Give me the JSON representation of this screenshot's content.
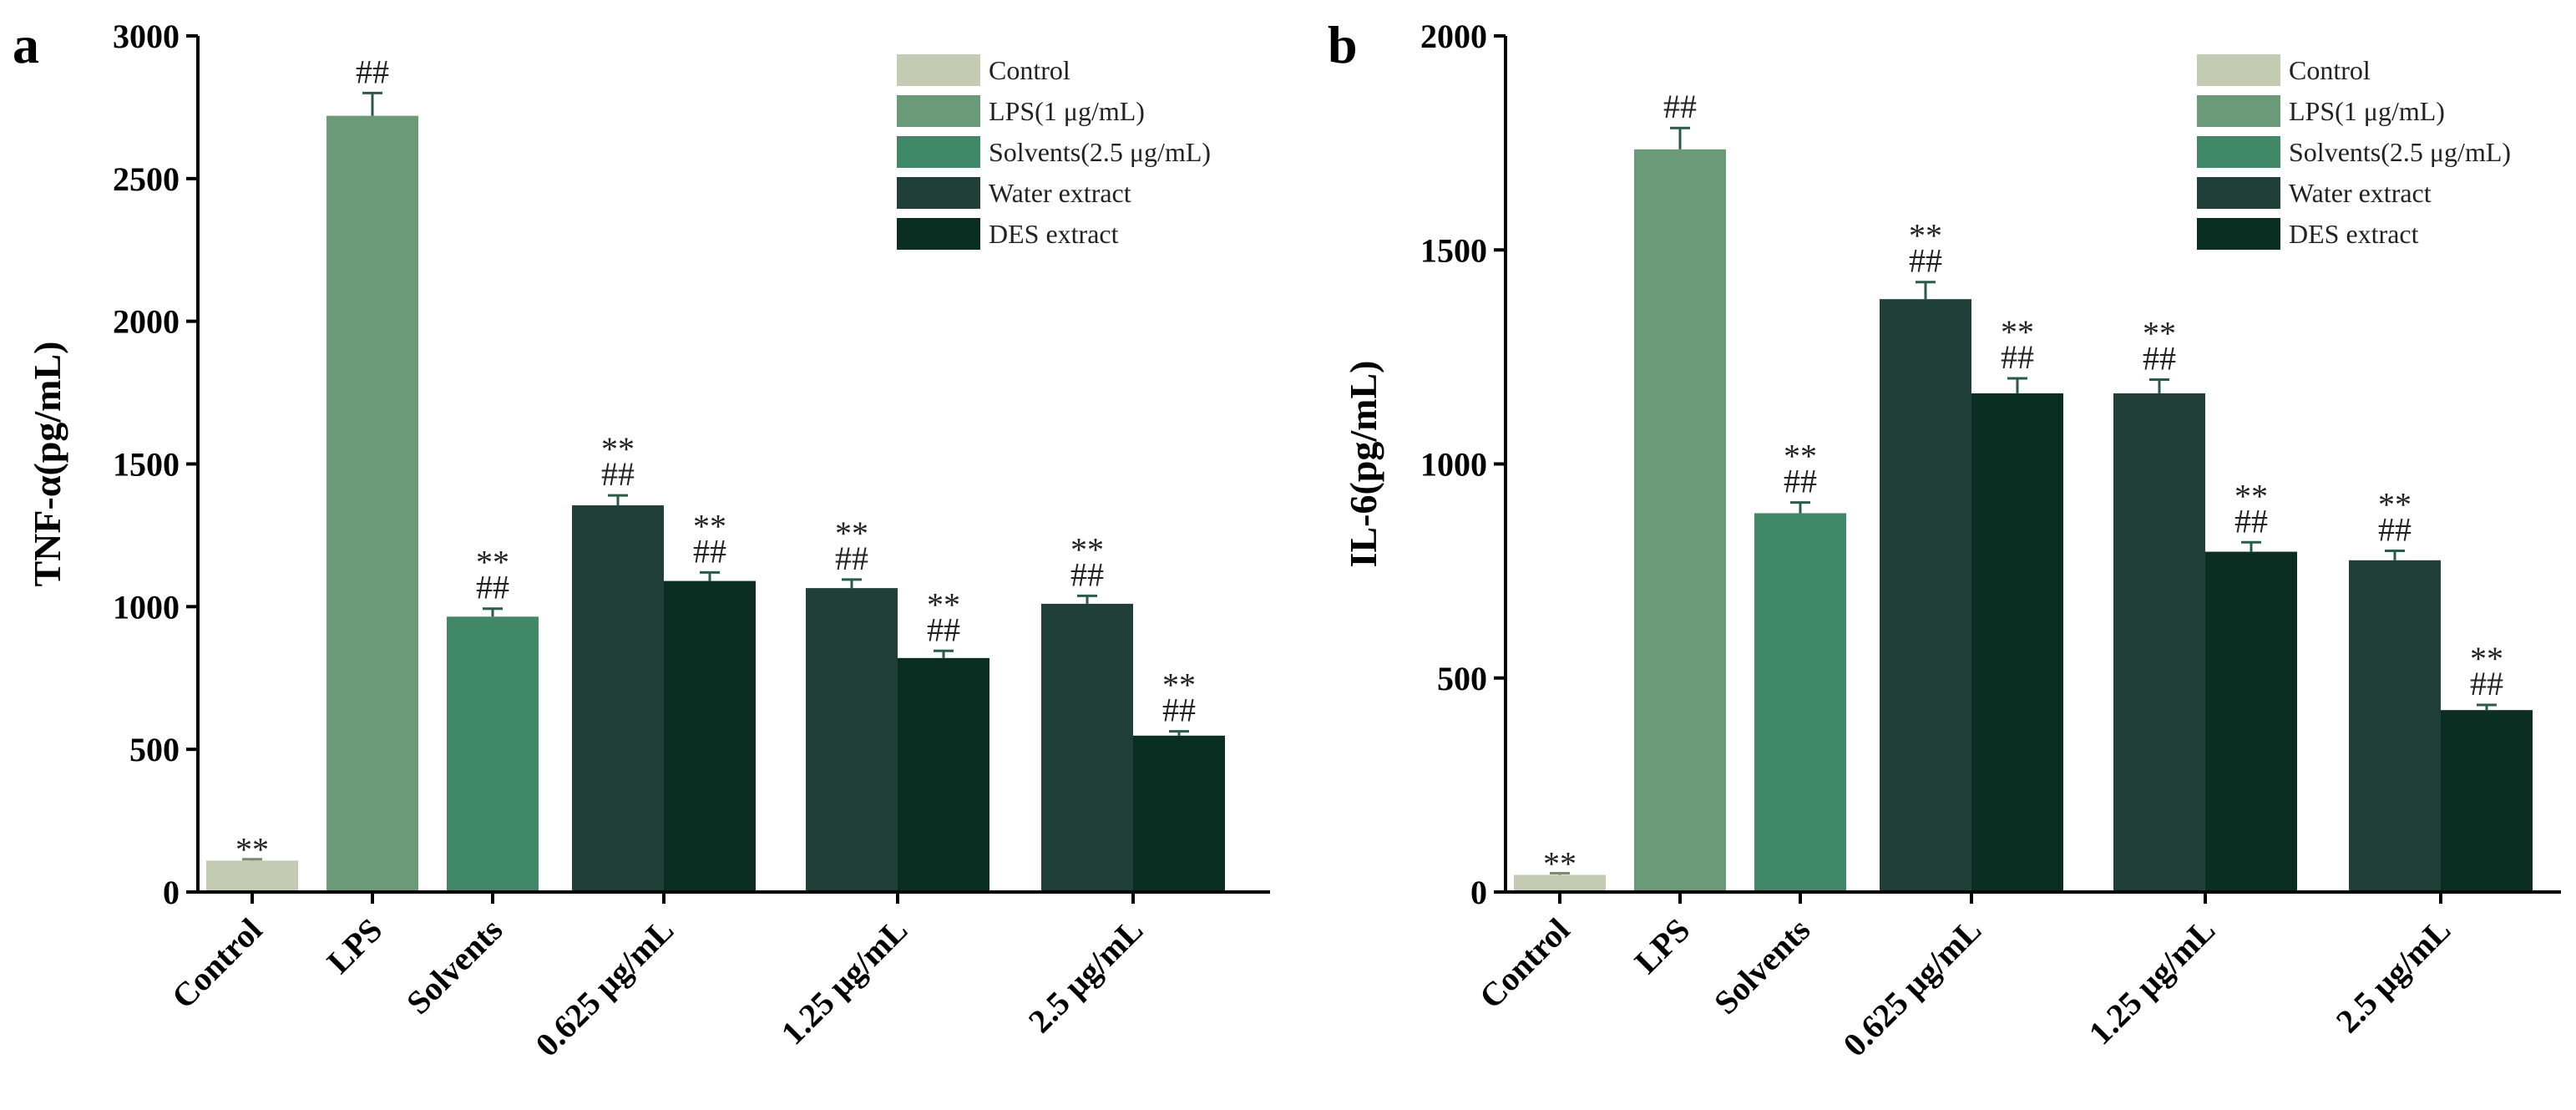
{
  "chart_data": [
    {
      "type": "bar",
      "panel": "a",
      "ylabel": "TNF-α(pg/mL)",
      "ylim": [
        0,
        3000
      ],
      "yticks": [
        0,
        500,
        1000,
        1500,
        2000,
        2500,
        3000
      ],
      "categories": [
        "Control",
        "LPS",
        "Solvents",
        "0.625 μg/mL",
        "1.25 μg/mL",
        "2.5 μg/mL"
      ],
      "bars": [
        {
          "category": "Control",
          "series": "Control",
          "value": 110,
          "error": 5,
          "labels": [
            "**"
          ]
        },
        {
          "category": "LPS",
          "series": "LPS(1 μg/mL)",
          "value": 2720,
          "error": 80,
          "labels": [
            "##"
          ]
        },
        {
          "category": "Solvents",
          "series": "Solvents(2.5 μg/mL)",
          "value": 965,
          "error": 28,
          "labels": [
            "**",
            "##"
          ]
        },
        {
          "category": "0.625 μg/mL",
          "series": "Water extract",
          "value": 1355,
          "error": 35,
          "labels": [
            "**",
            "##"
          ]
        },
        {
          "category": "0.625 μg/mL",
          "series": "DES extract",
          "value": 1090,
          "error": 30,
          "labels": [
            "**",
            "##"
          ]
        },
        {
          "category": "1.25 μg/mL",
          "series": "Water extract",
          "value": 1065,
          "error": 30,
          "labels": [
            "**",
            "##"
          ]
        },
        {
          "category": "1.25 μg/mL",
          "series": "DES extract",
          "value": 820,
          "error": 25,
          "labels": [
            "**",
            "##"
          ]
        },
        {
          "category": "2.5 μg/mL",
          "series": "Water extract",
          "value": 1010,
          "error": 28,
          "labels": [
            "**",
            "##"
          ]
        },
        {
          "category": "2.5 μg/mL",
          "series": "DES extract",
          "value": 548,
          "error": 15,
          "labels": [
            "**",
            "##"
          ]
        }
      ]
    },
    {
      "type": "bar",
      "panel": "b",
      "ylabel": "IL-6(pg/mL)",
      "ylim": [
        0,
        2000
      ],
      "yticks": [
        0,
        500,
        1000,
        1500,
        2000
      ],
      "categories": [
        "Control",
        "LPS",
        "Solvents",
        "0.625 μg/mL",
        "1.25 μg/mL",
        "2.5 μg/mL"
      ],
      "bars": [
        {
          "category": "Control",
          "series": "Control",
          "value": 40,
          "error": 4,
          "labels": [
            "**"
          ]
        },
        {
          "category": "LPS",
          "series": "LPS(1 μg/mL)",
          "value": 1735,
          "error": 50,
          "labels": [
            "##"
          ]
        },
        {
          "category": "Solvents",
          "series": "Solvents(2.5 μg/mL)",
          "value": 885,
          "error": 25,
          "labels": [
            "**",
            "##"
          ]
        },
        {
          "category": "0.625 μg/mL",
          "series": "Water extract",
          "value": 1385,
          "error": 40,
          "labels": [
            "**",
            "##"
          ]
        },
        {
          "category": "0.625 μg/mL",
          "series": "DES extract",
          "value": 1165,
          "error": 35,
          "labels": [
            "**",
            "##"
          ]
        },
        {
          "category": "1.25 μg/mL",
          "series": "Water extract",
          "value": 1165,
          "error": 32,
          "labels": [
            "**",
            "##"
          ]
        },
        {
          "category": "1.25 μg/mL",
          "series": "DES extract",
          "value": 795,
          "error": 22,
          "labels": [
            "**",
            "##"
          ]
        },
        {
          "category": "2.5 μg/mL",
          "series": "Water extract",
          "value": 775,
          "error": 22,
          "labels": [
            "**",
            "##"
          ]
        },
        {
          "category": "2.5 μg/mL",
          "series": "DES extract",
          "value": 425,
          "error": 12,
          "labels": [
            "**",
            "##"
          ]
        }
      ]
    }
  ],
  "legend": [
    {
      "label": "Control",
      "color": "#c3cbb2"
    },
    {
      "label": "LPS(1 μg/mL)",
      "color": "#6a9a78"
    },
    {
      "label": "Solvents(2.5 μg/mL)",
      "color": "#418868"
    },
    {
      "label": "Water extract",
      "color": "#203f38"
    },
    {
      "label": "DES extract",
      "color": "#0b2e22"
    }
  ]
}
